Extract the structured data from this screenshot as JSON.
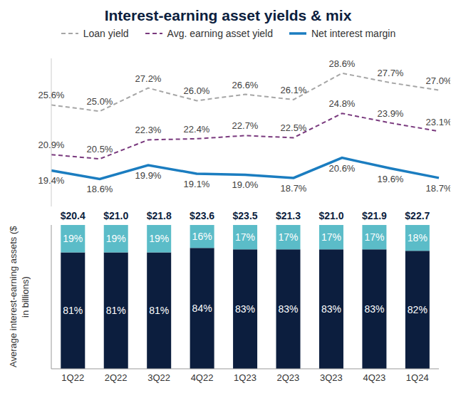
{
  "chart_data": [
    {
      "type": "line",
      "title": "Interest-earning asset yields & mix",
      "categories": [
        "1Q22",
        "2Q22",
        "3Q22",
        "4Q22",
        "1Q23",
        "2Q23",
        "3Q23",
        "4Q23",
        "1Q24"
      ],
      "ylim": [
        16,
        30
      ],
      "tick_labels": false,
      "legend": "top",
      "grid": false,
      "data_labels": true,
      "series": [
        {
          "name": "Loan yield",
          "color": "#a6a6a6",
          "line_style": "dashed",
          "values": [
            25.6,
            25.0,
            27.2,
            26.0,
            26.6,
            26.1,
            28.6,
            27.7,
            27.0
          ],
          "value_labels": [
            "25.6%",
            "25.0%",
            "27.2%",
            "26.0%",
            "26.6%",
            "26.1%",
            "28.6%",
            "27.7%",
            "27.0%"
          ]
        },
        {
          "name": "Avg. earning asset yield",
          "color": "#7a3a7e",
          "line_style": "dashed",
          "values": [
            20.9,
            20.5,
            22.3,
            22.4,
            22.7,
            22.5,
            24.8,
            23.9,
            23.1
          ],
          "value_labels": [
            "20.9%",
            "20.5%",
            "22.3%",
            "22.4%",
            "22.7%",
            "22.5%",
            "24.8%",
            "23.9%",
            "23.1%"
          ]
        },
        {
          "name": "Net interest margin",
          "color": "#1b7dc0",
          "line_style": "solid",
          "values": [
            19.4,
            18.6,
            19.9,
            19.1,
            19.0,
            18.7,
            20.6,
            19.6,
            18.7
          ],
          "value_labels": [
            "19.4%",
            "18.6%",
            "19.9%",
            "19.1%",
            "19.0%",
            "18.7%",
            "20.6%",
            "19.6%",
            "18.7%"
          ]
        }
      ]
    },
    {
      "type": "bar",
      "stacked": true,
      "ylabel": "Average interest-earning assets ($ in billions)",
      "categories": [
        "1Q22",
        "2Q22",
        "3Q22",
        "4Q22",
        "1Q23",
        "2Q23",
        "3Q23",
        "4Q23",
        "1Q24"
      ],
      "ylim": [
        0,
        100
      ],
      "tick_labels": "x",
      "grid": false,
      "data_labels": true,
      "series": [
        {
          "color": "#0c1e3e",
          "values": [
            81,
            81,
            81,
            84,
            83,
            83,
            83,
            83,
            82
          ],
          "value_labels": [
            "81%",
            "81%",
            "81%",
            "84%",
            "83%",
            "83%",
            "83%",
            "83%",
            "82%"
          ]
        },
        {
          "color": "#5bbcc8",
          "values": [
            19,
            19,
            19,
            16,
            17,
            17,
            17,
            17,
            18
          ],
          "value_labels": [
            "19%",
            "19%",
            "19%",
            "16%",
            "17%",
            "17%",
            "17%",
            "17%",
            "18%"
          ]
        }
      ],
      "totals": [
        20.4,
        21.0,
        21.8,
        23.6,
        23.5,
        21.3,
        21.0,
        21.9,
        22.7
      ],
      "total_labels": [
        "$20.4",
        "$21.0",
        "$21.8",
        "$23.6",
        "$23.5",
        "$21.3",
        "$21.0",
        "$21.9",
        "$22.7"
      ]
    }
  ]
}
